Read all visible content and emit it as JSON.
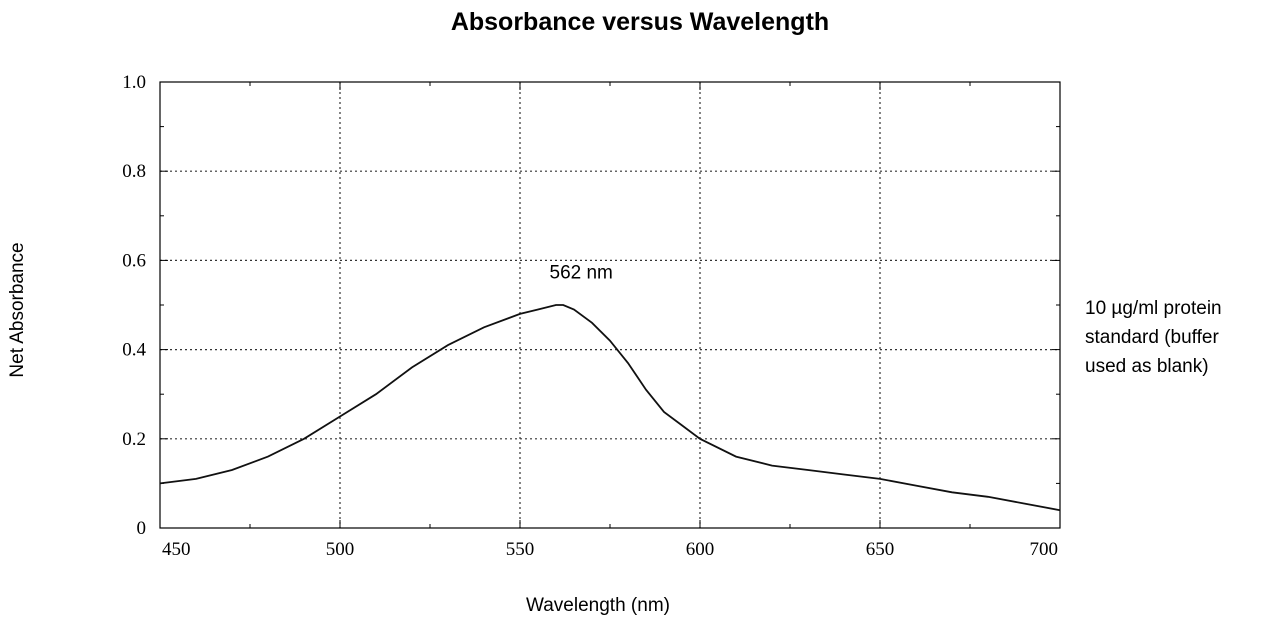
{
  "chart_data": {
    "type": "line",
    "title": "Absorbance versus Wavelength",
    "xlabel": "Wavelength  (nm)",
    "ylabel": "Net Absorbance",
    "xlim": [
      450,
      700
    ],
    "ylim": [
      0,
      1.0
    ],
    "x_ticks": [
      450,
      500,
      550,
      600,
      650,
      700
    ],
    "x_tick_labels": [
      "450",
      "500",
      "550",
      "600",
      "650",
      "700"
    ],
    "y_ticks": [
      0,
      0.2,
      0.4,
      0.6,
      0.8,
      1.0
    ],
    "y_tick_labels": [
      "0",
      "0.2",
      "0.4",
      "0.6",
      "0.8",
      "1.0"
    ],
    "grid": true,
    "annotation": {
      "text": "562 nm",
      "x": 562
    },
    "side_note": [
      "10 µg/ml protein",
      "standard (buffer",
      "used as blank)"
    ],
    "series": [
      {
        "x": [
          450,
          460,
          470,
          480,
          490,
          500,
          510,
          520,
          530,
          540,
          550,
          555,
          560,
          562,
          565,
          570,
          575,
          580,
          585,
          590,
          595,
          600,
          610,
          620,
          630,
          640,
          650,
          660,
          670,
          680,
          690,
          700
        ],
        "values": [
          0.1,
          0.11,
          0.13,
          0.16,
          0.2,
          0.25,
          0.3,
          0.36,
          0.41,
          0.45,
          0.48,
          0.49,
          0.5,
          0.5,
          0.49,
          0.46,
          0.42,
          0.37,
          0.31,
          0.26,
          0.23,
          0.2,
          0.16,
          0.14,
          0.13,
          0.12,
          0.11,
          0.095,
          0.08,
          0.07,
          0.055,
          0.04
        ]
      }
    ]
  }
}
